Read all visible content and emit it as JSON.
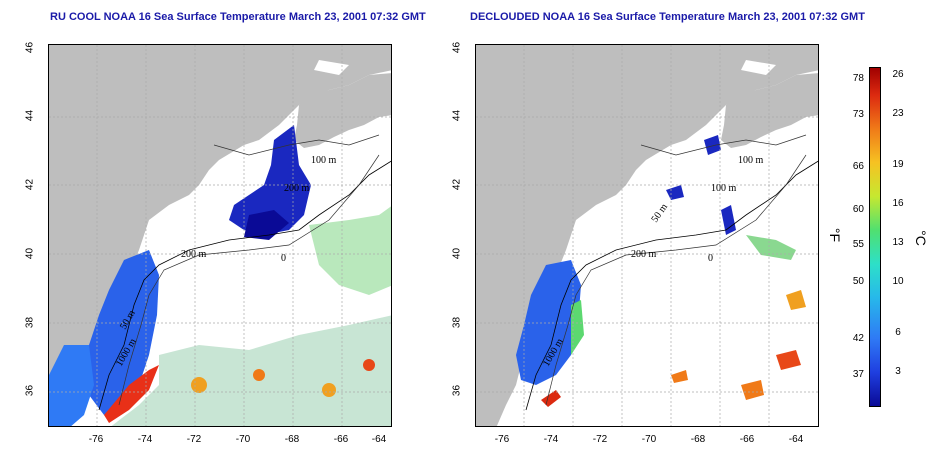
{
  "titles": {
    "left": "RU COOL NOAA 16 Sea Surface Temperature March 23, 2001 07:32 GMT",
    "right": "DECLOUDED NOAA 16 Sea Surface Temperature March 23, 2001 07:32 GMT"
  },
  "axes": {
    "lat_ticks": [
      "46",
      "44",
      "42",
      "40",
      "38",
      "36"
    ],
    "lon_ticks": [
      "-76",
      "-74",
      "-72",
      "-70",
      "-68",
      "-66",
      "-64"
    ]
  },
  "contour_labels": {
    "m100": "100 m",
    "m200": "200 m",
    "m50": "50 m",
    "m1000": "1000 m",
    "zero": "0"
  },
  "colorbar": {
    "fahrenheit_ticks": [
      "78",
      "73",
      "66",
      "60",
      "55",
      "50",
      "42",
      "37"
    ],
    "celsius_ticks": [
      "26",
      "23",
      "19",
      "16",
      "13",
      "10",
      "6",
      "3"
    ],
    "unit_f": "°F",
    "unit_c": "°C",
    "colors": [
      "#0a0a96",
      "#2f7af5",
      "#2de0c8",
      "#c6e830",
      "#f07a18",
      "#a00000"
    ]
  },
  "map_colors": {
    "land": "#bebebe",
    "cloud": "#ffffff",
    "grid": "#aaaaaa"
  }
}
